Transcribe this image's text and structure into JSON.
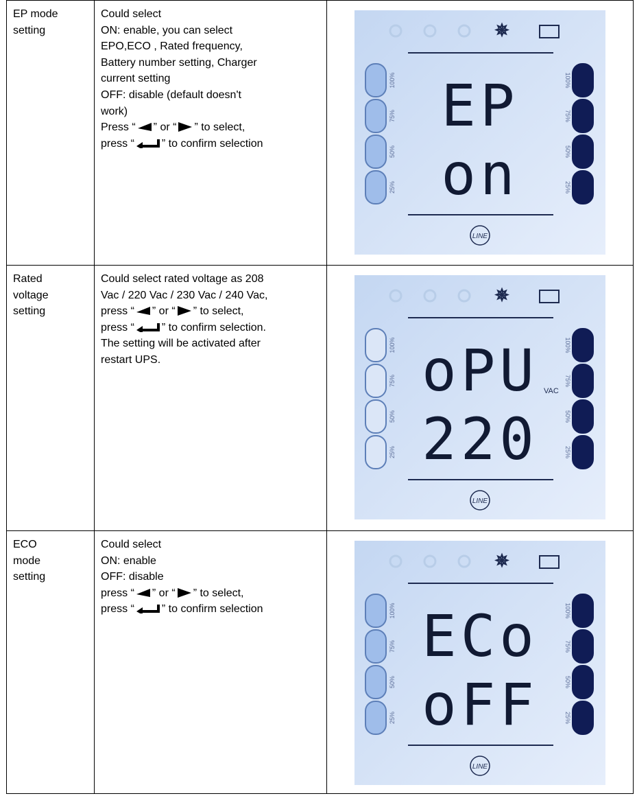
{
  "table": {
    "rows": [
      {
        "label": [
          "EP mode",
          "setting"
        ],
        "description": [
          [
            "Could select"
          ],
          [
            "ON: enable, you can select"
          ],
          [
            "EPO,ECO , Rated frequency,"
          ],
          [
            "Battery number setting, Charger"
          ],
          [
            "current setting"
          ],
          [
            "OFF: disable (default doesn't"
          ],
          [
            "work)"
          ],
          [
            "Press “",
            "” or “",
            "” to select,"
          ],
          [
            "press “",
            "” to confirm selection"
          ]
        ],
        "lcd": {
          "line1": "EP",
          "line2": "on",
          "levels": [
            "100%",
            "75%",
            "50%",
            "25%"
          ],
          "mode": "LINE"
        }
      },
      {
        "label": [
          "Rated",
          "voltage",
          "setting"
        ],
        "description": [
          [
            "Could select rated voltage as 208"
          ],
          [
            "Vac / 220 Vac / 230 Vac / 240 Vac,"
          ],
          [
            "press “",
            "” or “",
            "”  to select,"
          ],
          [
            "press “",
            "” to confirm selection."
          ],
          [
            "The setting will be activated after"
          ],
          [
            "restart UPS."
          ]
        ],
        "lcd": {
          "line1": "oPU",
          "line2": "220",
          "unit": "VAC",
          "levels": [
            "100%",
            "75%",
            "50%",
            "25%"
          ],
          "mode": "LINE"
        }
      },
      {
        "label": [
          "ECO",
          "mode",
          "setting"
        ],
        "description": [
          [
            "Could select"
          ],
          [
            "ON: enable"
          ],
          [
            "OFF: disable"
          ],
          [
            "press “",
            "” or “",
            "”  to select,"
          ],
          [
            "press “",
            "” to confirm selection"
          ]
        ],
        "lcd": {
          "line1": "ECo",
          "line2": "oFF",
          "levels": [
            "100%",
            "75%",
            "50%",
            "25%"
          ],
          "mode": "LINE"
        }
      }
    ]
  }
}
